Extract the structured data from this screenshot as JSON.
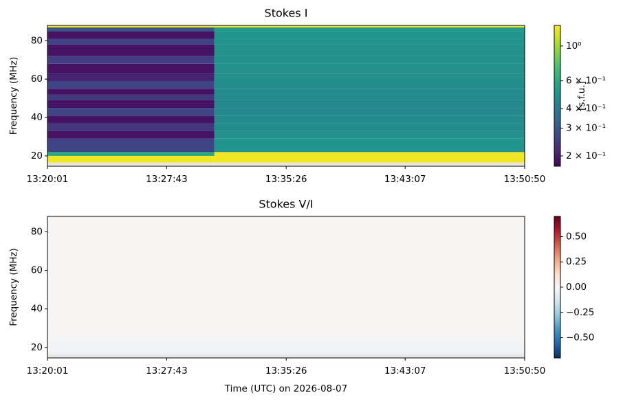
{
  "chart_data": [
    {
      "type": "heatmap",
      "title": "Stokes I",
      "ylabel": "Frequency (MHz)",
      "colorbar_label": "[s.f.u.]",
      "colormap": "viridis",
      "zscale": "log",
      "zlim": [
        0.172,
        1.35
      ],
      "zticks": [
        {
          "value": 1,
          "label": "10⁰"
        },
        {
          "value": 0.6,
          "label": "6 × 10⁻¹"
        },
        {
          "value": 0.4,
          "label": "4 × 10⁻¹"
        },
        {
          "value": 0.3,
          "label": "3 × 10⁻¹"
        },
        {
          "value": 0.2,
          "label": "2 × 10⁻¹"
        }
      ],
      "xlim": [
        48001,
        49850
      ],
      "xticks": [
        {
          "value": 48001,
          "label": "13:20:01"
        },
        {
          "value": 48463,
          "label": "13:27:43"
        },
        {
          "value": 48926,
          "label": "13:35:26"
        },
        {
          "value": 49387,
          "label": "13:43:07"
        },
        {
          "value": 49850,
          "label": "13:50:50"
        }
      ],
      "ylim": [
        14.6,
        88
      ],
      "yticks": [
        20,
        40,
        60,
        80
      ],
      "x_bins": [
        48001,
        48648,
        49850
      ],
      "y_bins": [
        14.6,
        16.5,
        20,
        22,
        29,
        33,
        37,
        41,
        45,
        49,
        52,
        55,
        59,
        63,
        68,
        72,
        78,
        81,
        85,
        87,
        88
      ],
      "values": [
        [
          null,
          null
        ],
        [
          1.3,
          1.3
        ],
        [
          0.6,
          1.3
        ],
        [
          0.26,
          0.5
        ],
        [
          0.19,
          0.48
        ],
        [
          0.24,
          0.47
        ],
        [
          0.19,
          0.46
        ],
        [
          0.26,
          0.45
        ],
        [
          0.19,
          0.45
        ],
        [
          0.24,
          0.46
        ],
        [
          0.19,
          0.47
        ],
        [
          0.26,
          0.47
        ],
        [
          0.21,
          0.48
        ],
        [
          0.19,
          0.48
        ],
        [
          0.25,
          0.48
        ],
        [
          0.19,
          0.49
        ],
        [
          0.26,
          0.5
        ],
        [
          0.19,
          0.5
        ],
        [
          0.3,
          0.52
        ],
        [
          1.3,
          1.3
        ]
      ]
    },
    {
      "type": "heatmap",
      "title": "Stokes V/I",
      "ylabel": "Frequency (MHz)",
      "xlabel": "Time (UTC) on 2026-08-07",
      "colormap": "RdBu_r",
      "zscale": "linear",
      "zlim": [
        -0.7,
        0.7
      ],
      "zticks": [
        {
          "value": 0.5,
          "label": "0.50"
        },
        {
          "value": 0.25,
          "label": "0.25"
        },
        {
          "value": 0,
          "label": "0.00"
        },
        {
          "value": -0.25,
          "label": "−0.25"
        },
        {
          "value": -0.5,
          "label": "−0.50"
        }
      ],
      "xlim": [
        48001,
        49850
      ],
      "xticks": [
        {
          "value": 48001,
          "label": "13:20:01"
        },
        {
          "value": 48463,
          "label": "13:27:43"
        },
        {
          "value": 48926,
          "label": "13:35:26"
        },
        {
          "value": 49387,
          "label": "13:43:07"
        },
        {
          "value": 49850,
          "label": "13:50:50"
        }
      ],
      "ylim": [
        14.6,
        88
      ],
      "yticks": [
        20,
        40,
        60,
        80
      ],
      "x_bins": [
        48001,
        49850
      ],
      "y_bins": [
        14.6,
        16.5,
        18,
        25,
        88
      ],
      "values": [
        [
          null
        ],
        [
          -0.05
        ],
        [
          -0.02
        ],
        [
          0.01
        ]
      ]
    }
  ]
}
